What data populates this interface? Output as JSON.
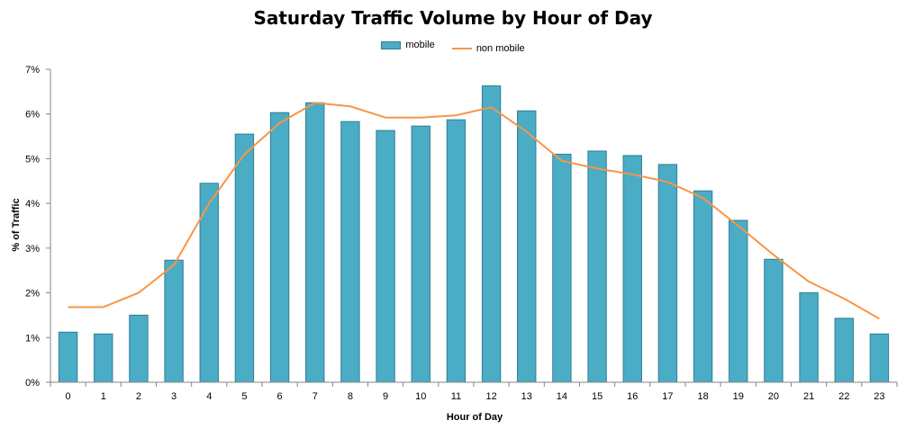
{
  "chart_data": {
    "type": "bar",
    "title": "Saturday Traffic Volume by Hour of Day",
    "xlabel": "Hour of Day",
    "ylabel": "% of Traffic",
    "categories": [
      "0",
      "1",
      "2",
      "3",
      "4",
      "5",
      "6",
      "7",
      "8",
      "9",
      "10",
      "11",
      "12",
      "13",
      "14",
      "15",
      "16",
      "17",
      "18",
      "19",
      "20",
      "21",
      "22",
      "23"
    ],
    "ylim": [
      0,
      7
    ],
    "yticks": [
      "0%",
      "1%",
      "2%",
      "3%",
      "4%",
      "5%",
      "6%",
      "7%"
    ],
    "grid": false,
    "legend_position": "top-center",
    "series": [
      {
        "name": "mobile",
        "type": "bar",
        "color": "#4BACC6",
        "values": [
          1.12,
          1.08,
          1.5,
          2.73,
          4.45,
          5.55,
          6.03,
          6.25,
          5.83,
          5.63,
          5.73,
          5.87,
          6.63,
          6.07,
          5.1,
          5.17,
          5.07,
          4.87,
          4.28,
          3.62,
          2.75,
          2.0,
          1.43,
          1.08
        ]
      },
      {
        "name": "non mobile",
        "type": "line",
        "color": "#F79646",
        "values": [
          1.68,
          1.68,
          2.0,
          2.62,
          4.0,
          5.1,
          5.8,
          6.25,
          6.17,
          5.92,
          5.92,
          5.97,
          6.15,
          5.6,
          4.95,
          4.78,
          4.65,
          4.48,
          4.12,
          3.5,
          2.85,
          2.25,
          1.87,
          1.42
        ]
      }
    ]
  }
}
